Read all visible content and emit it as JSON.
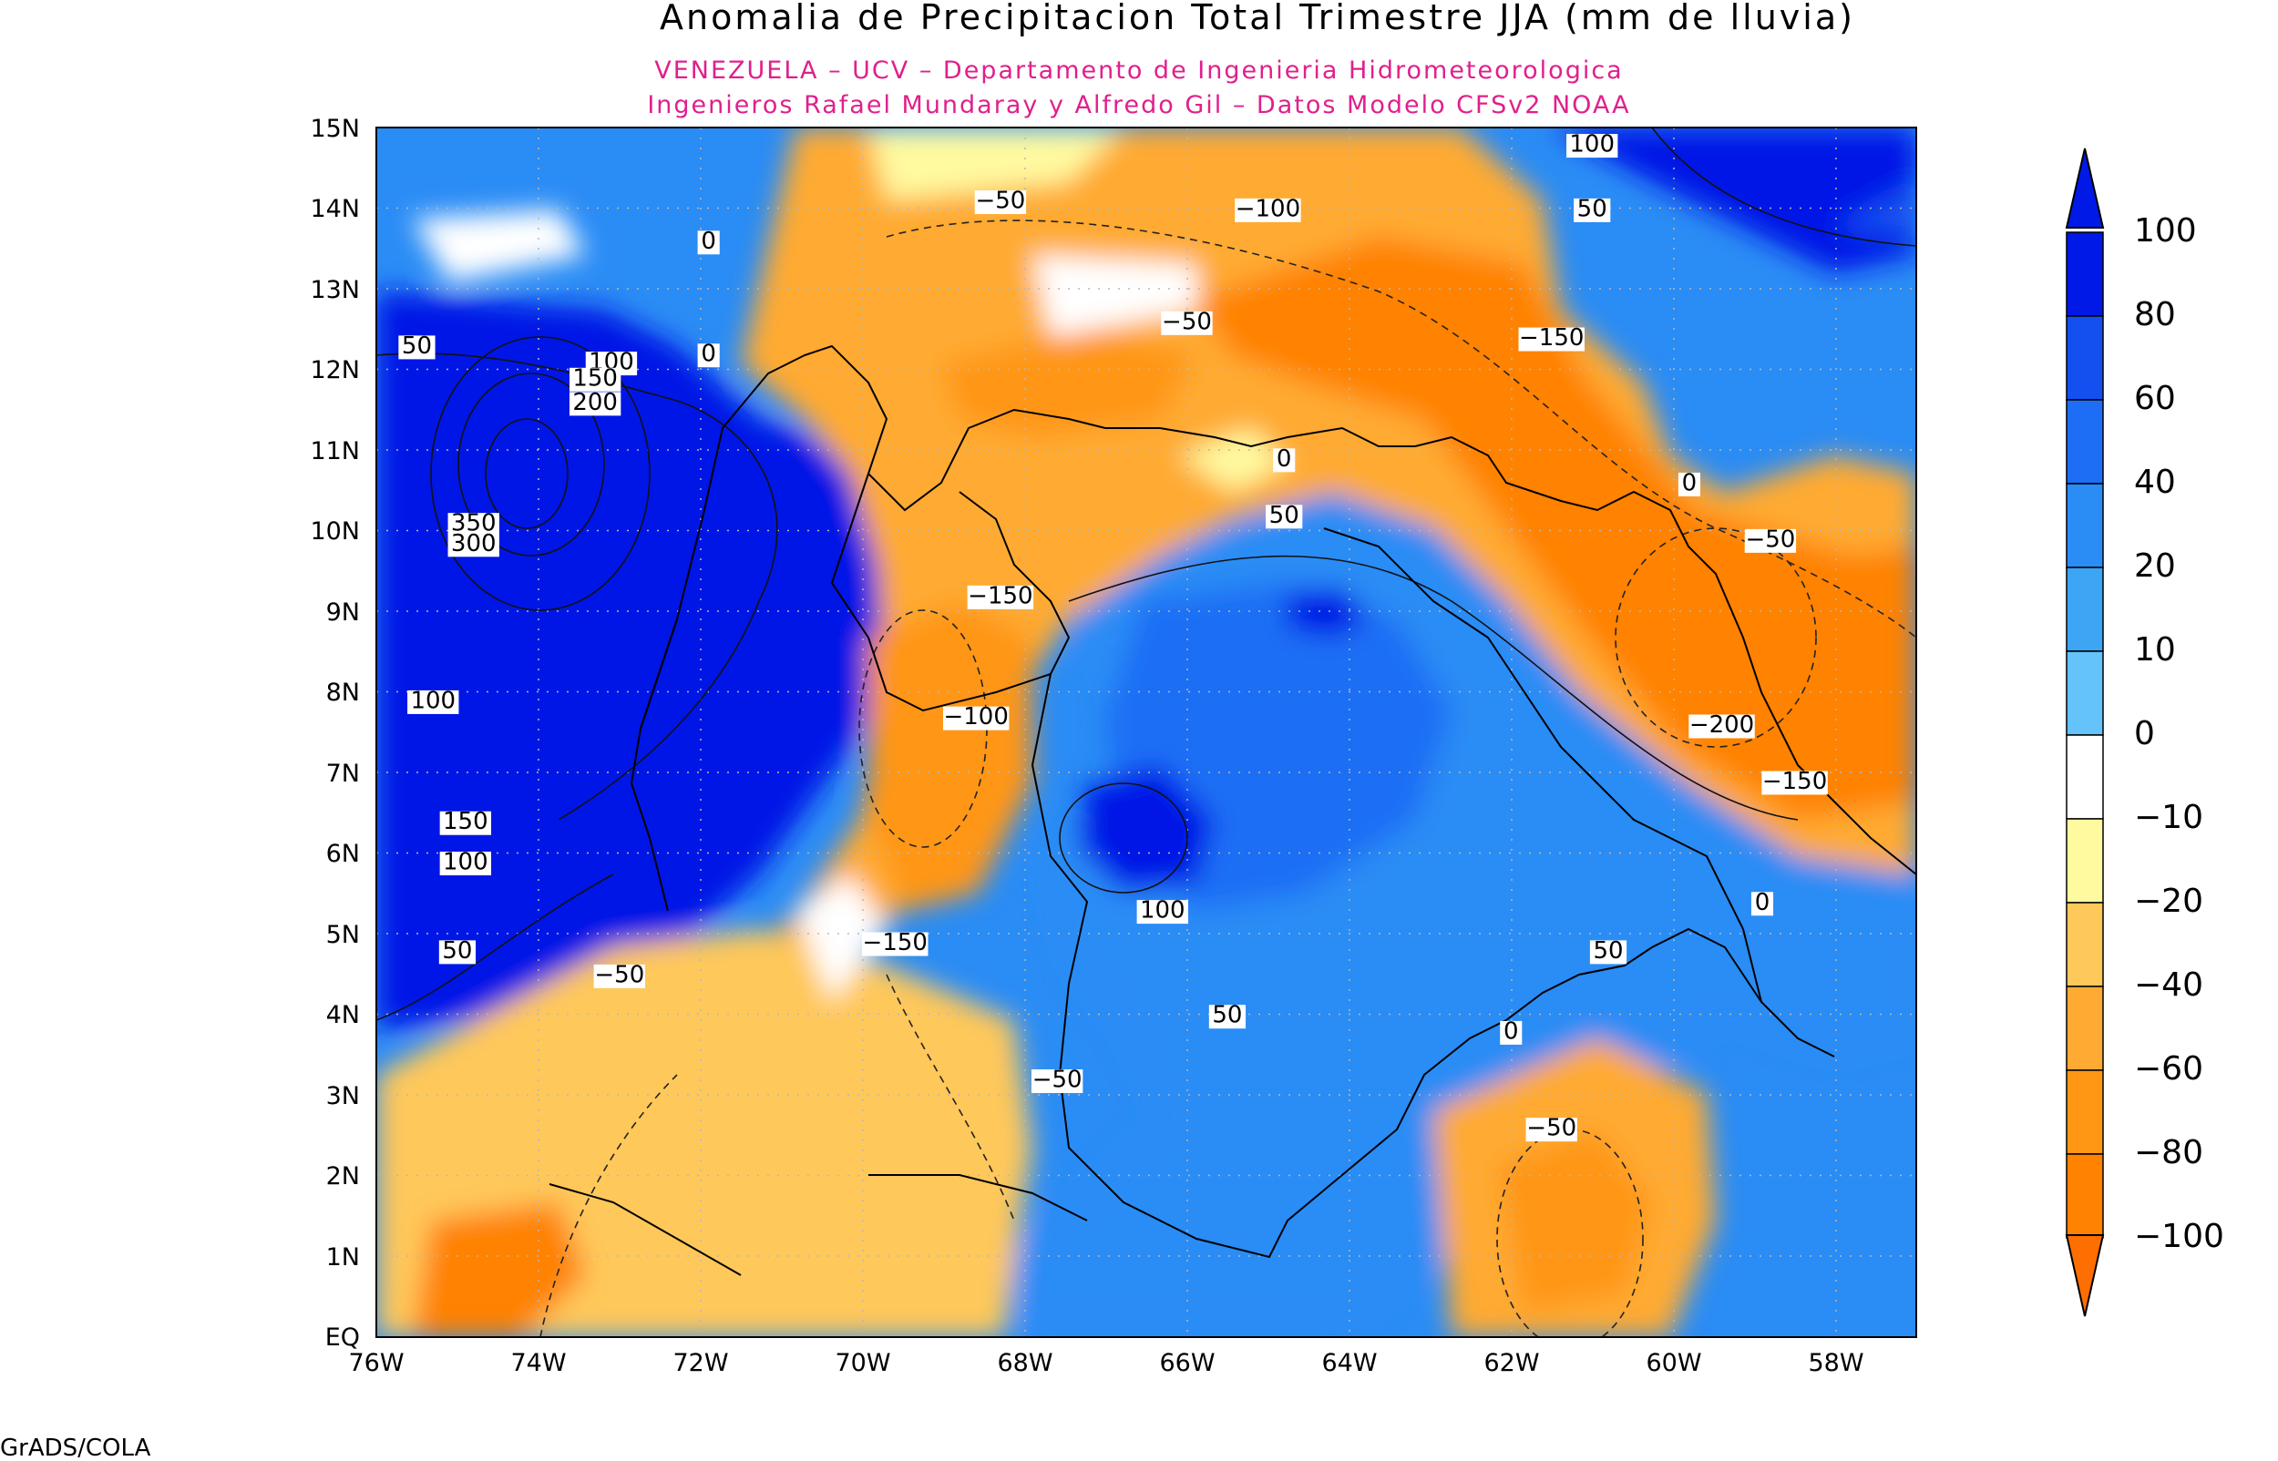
{
  "title": "Anomalia de Precipitacion Total Trimestre JJA (mm de lluvia)",
  "subtitle_1": "VENEZUELA – UCV – Departamento de Ingenieria Hidrometeorologica",
  "subtitle_2": "Ingenieros Rafael Mundaray y Alfredo Gil – Datos Modelo CFSv2 NOAA",
  "credit": "GrADS/COLA",
  "lat_ticks": [
    "15N",
    "14N",
    "13N",
    "12N",
    "11N",
    "10N",
    "9N",
    "8N",
    "7N",
    "6N",
    "5N",
    "4N",
    "3N",
    "2N",
    "1N",
    "EQ"
  ],
  "lon_ticks": [
    "76W",
    "74W",
    "72W",
    "70W",
    "68W",
    "66W",
    "64W",
    "62W",
    "60W",
    "58W"
  ],
  "colorbar": {
    "labels": [
      "100",
      "80",
      "60",
      "40",
      "20",
      "10",
      "0",
      "−10",
      "−20",
      "−40",
      "−60",
      "−80",
      "−100"
    ],
    "colors": [
      "#0019e6",
      "#1450f0",
      "#1e6ef5",
      "#2a8cf5",
      "#3ca6f5",
      "#64c3fa",
      "#ffffff",
      "#fffaa0",
      "#ffc85a",
      "#ffaa32",
      "#ff9614",
      "#ff8200",
      "#ff6e00"
    ]
  },
  "contour_labels": [
    {
      "id": "l01",
      "text": "100",
      "lon": -61.0,
      "lat": 14.7
    },
    {
      "id": "l02",
      "text": "50",
      "lon": -61.0,
      "lat": 13.9
    },
    {
      "id": "l03",
      "text": "−50",
      "lon": -68.3,
      "lat": 14.0
    },
    {
      "id": "l04",
      "text": "−100",
      "lon": -65.0,
      "lat": 13.9
    },
    {
      "id": "l05",
      "text": "0",
      "lon": -71.9,
      "lat": 13.5
    },
    {
      "id": "l06",
      "text": "−50",
      "lon": -66.0,
      "lat": 12.5
    },
    {
      "id": "l07",
      "text": "−150",
      "lon": -61.5,
      "lat": 12.3
    },
    {
      "id": "l08",
      "text": "0",
      "lon": -71.9,
      "lat": 12.1
    },
    {
      "id": "l09",
      "text": "50",
      "lon": -75.5,
      "lat": 12.2
    },
    {
      "id": "l10",
      "text": "100",
      "lon": -73.1,
      "lat": 12.0
    },
    {
      "id": "l11",
      "text": "150",
      "lon": -73.3,
      "lat": 11.8
    },
    {
      "id": "l12",
      "text": "200",
      "lon": -73.3,
      "lat": 11.5
    },
    {
      "id": "l13",
      "text": "0",
      "lon": -64.8,
      "lat": 10.8
    },
    {
      "id": "l14",
      "text": "0",
      "lon": -59.8,
      "lat": 10.5
    },
    {
      "id": "l15",
      "text": "50",
      "lon": -64.8,
      "lat": 10.1
    },
    {
      "id": "l16",
      "text": "−50",
      "lon": -58.8,
      "lat": 9.8
    },
    {
      "id": "l17",
      "text": "350",
      "lon": -74.8,
      "lat": 10.0
    },
    {
      "id": "l18",
      "text": "300",
      "lon": -74.8,
      "lat": 9.75
    },
    {
      "id": "l19",
      "text": "−150",
      "lon": -68.3,
      "lat": 9.1
    },
    {
      "id": "l20",
      "text": "100",
      "lon": -75.3,
      "lat": 7.8
    },
    {
      "id": "l21",
      "text": "−100",
      "lon": -68.6,
      "lat": 7.6
    },
    {
      "id": "l22",
      "text": "−200",
      "lon": -59.4,
      "lat": 7.5
    },
    {
      "id": "l23",
      "text": "−150",
      "lon": -58.5,
      "lat": 6.8
    },
    {
      "id": "l24",
      "text": "150",
      "lon": -74.9,
      "lat": 6.3
    },
    {
      "id": "l25",
      "text": "100",
      "lon": -74.9,
      "lat": 5.8
    },
    {
      "id": "l26",
      "text": "100",
      "lon": -66.3,
      "lat": 5.2
    },
    {
      "id": "l27",
      "text": "0",
      "lon": -58.9,
      "lat": 5.3
    },
    {
      "id": "l28",
      "text": "−150",
      "lon": -69.6,
      "lat": 4.8
    },
    {
      "id": "l29",
      "text": "50",
      "lon": -75.0,
      "lat": 4.7
    },
    {
      "id": "l30",
      "text": "50",
      "lon": -60.8,
      "lat": 4.7
    },
    {
      "id": "l31",
      "text": "−50",
      "lon": -73.0,
      "lat": 4.4
    },
    {
      "id": "l32",
      "text": "50",
      "lon": -65.5,
      "lat": 3.9
    },
    {
      "id": "l33",
      "text": "0",
      "lon": -62.0,
      "lat": 3.7
    },
    {
      "id": "l34",
      "text": "−50",
      "lon": -67.6,
      "lat": 3.1
    },
    {
      "id": "l35",
      "text": "−50",
      "lon": -61.5,
      "lat": 2.5
    }
  ]
}
